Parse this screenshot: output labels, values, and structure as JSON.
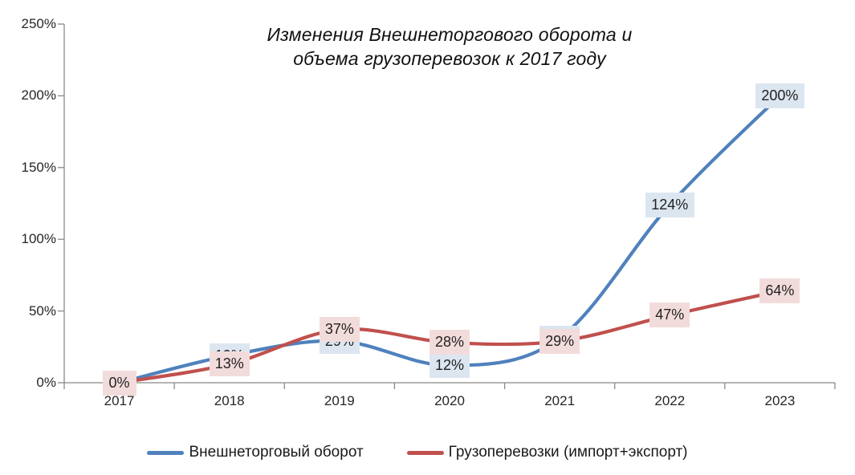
{
  "title": {
    "line1": "Изменения Внешнеторгового оборота и",
    "line2": "объема грузоперевозок к 2017 году"
  },
  "chart_data": {
    "type": "line",
    "title": "Изменения Внешнеторгового оборота и объема грузоперевозок к 2017 году",
    "categories": [
      "2017",
      "2018",
      "2019",
      "2020",
      "2021",
      "2022",
      "2023"
    ],
    "series": [
      {
        "name": "Внешнеторговый оборот",
        "color": "#4F81BD",
        "label_bg": "#DCE6F1",
        "values": [
          0,
          19,
          29,
          12,
          31,
          124,
          200
        ],
        "data_labels": [
          "0%",
          "19%",
          "29%",
          "12%",
          "31%",
          "124%",
          "200%"
        ],
        "labels_obscured_by_other_series": [
          0,
          1,
          4
        ],
        "estimated_value_indices": [
          1,
          4
        ]
      },
      {
        "name": "Грузоперевозки (импорт+экспорт)",
        "color": "#C0504D",
        "label_bg": "#F2DCDB",
        "values": [
          0,
          13,
          37,
          28,
          29,
          47,
          64
        ],
        "data_labels": [
          "0%",
          "13%",
          "37%",
          "28%",
          "29%",
          "47%",
          "64%"
        ]
      }
    ],
    "y_tick_labels": [
      "0%",
      "50%",
      "100%",
      "150%",
      "200%",
      "250%"
    ],
    "ylim": [
      0,
      250
    ],
    "y_tick_step": 50,
    "xlabel": "",
    "ylabel": "",
    "grid": false,
    "smoothed": true,
    "legend_position": "bottom"
  },
  "colors": {
    "axis": "#898989",
    "tick_text": "#262626",
    "title_text": "#111111"
  }
}
